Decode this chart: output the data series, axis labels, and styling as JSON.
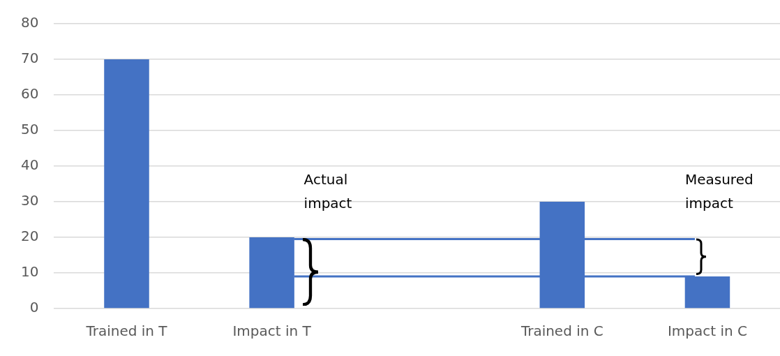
{
  "chart_data": {
    "type": "bar",
    "categories": [
      "Trained in T",
      "Impact in T",
      null,
      "Trained in C",
      "Impact in C"
    ],
    "values": [
      70,
      20,
      null,
      30,
      9
    ],
    "color": "#4472c4",
    "ylim": [
      0,
      80
    ],
    "yticks": [
      0,
      10,
      20,
      30,
      40,
      50,
      60,
      70,
      80
    ],
    "grid": "y",
    "legend": false,
    "ref_lines": [
      {
        "axis": "y",
        "value": 19.5,
        "color": "#4472c4"
      },
      {
        "axis": "y",
        "value": 9,
        "color": "#4472c4"
      }
    ],
    "annotations": [
      "Actual impact",
      "Measured impact"
    ]
  }
}
